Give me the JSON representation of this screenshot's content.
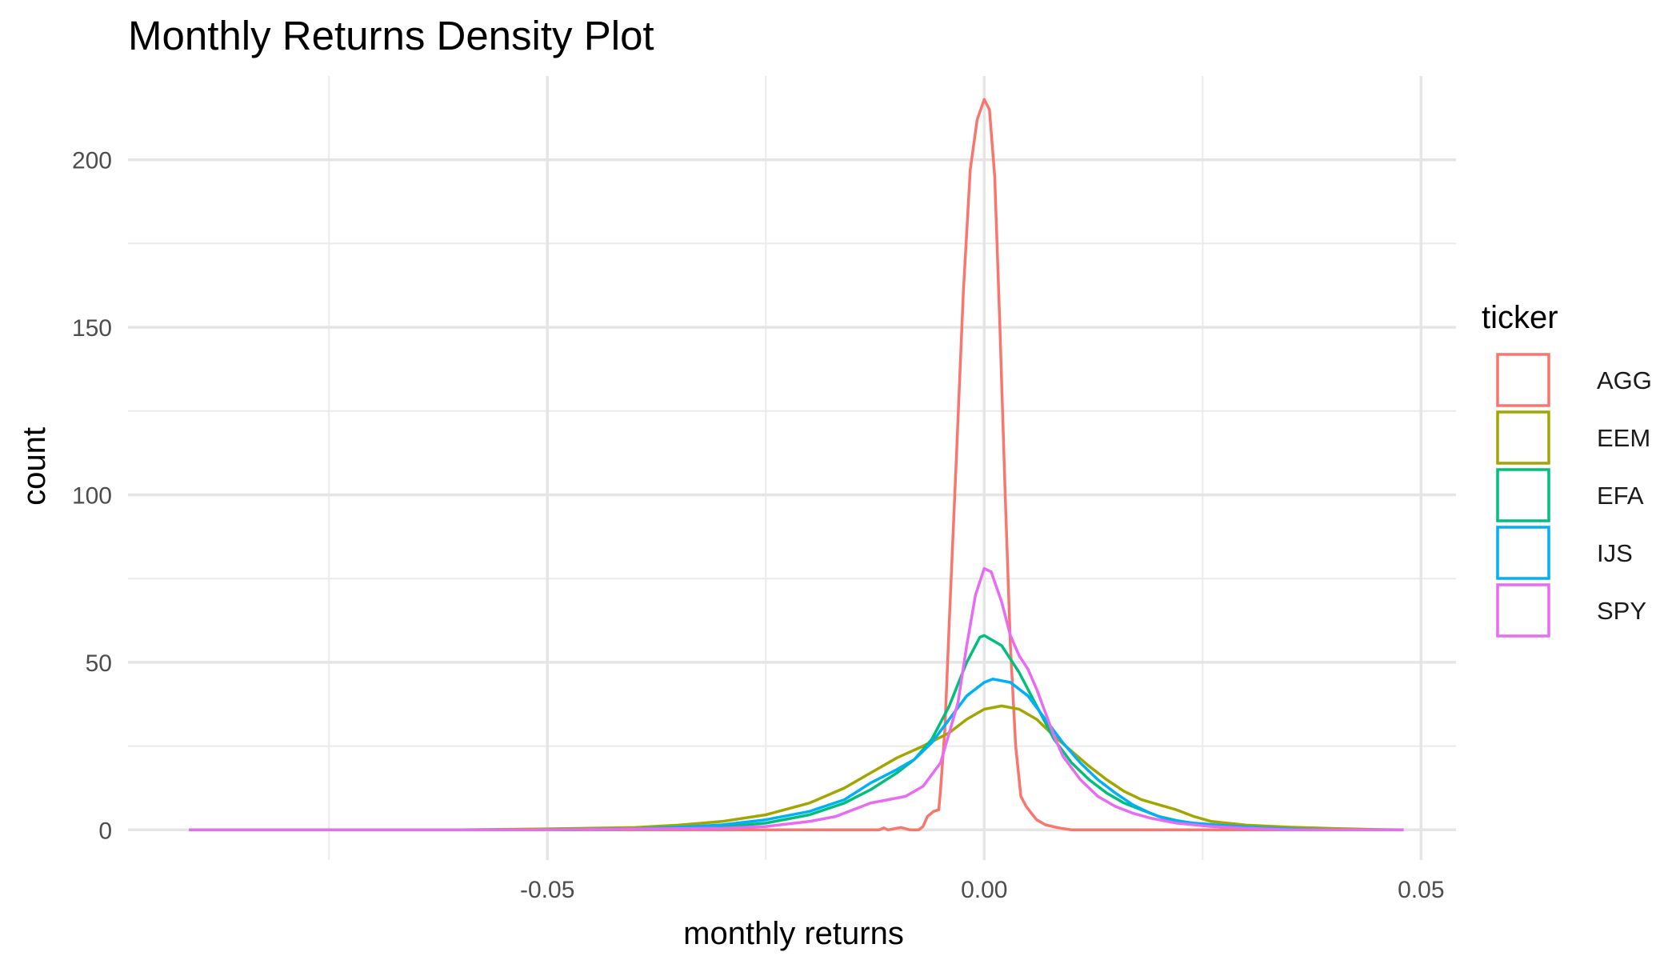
{
  "chart_data": {
    "type": "line",
    "title": "Monthly Returns Density Plot",
    "xlabel": "monthly returns",
    "ylabel": "count",
    "xlim": [
      -0.098,
      0.054
    ],
    "ylim": [
      -9,
      225
    ],
    "x_ticks": [
      -0.05,
      0.0,
      0.05
    ],
    "x_tick_labels": [
      "-0.05",
      "0.00",
      "0.05"
    ],
    "x_minor_ticks": [
      -0.075,
      -0.025,
      0.025
    ],
    "y_ticks": [
      0,
      50,
      100,
      150,
      200
    ],
    "y_tick_labels": [
      "0",
      "50",
      "100",
      "150",
      "200"
    ],
    "y_minor_ticks": [
      25,
      75,
      125,
      175
    ],
    "grid": true,
    "legend": {
      "title": "ticker",
      "position": "right"
    },
    "series": [
      {
        "name": "AGG",
        "color": "#F8766D",
        "points": [
          [
            -0.091,
            0
          ],
          [
            -0.012,
            0
          ],
          [
            -0.0115,
            0.6
          ],
          [
            -0.011,
            0
          ],
          [
            -0.0095,
            0.7
          ],
          [
            -0.0085,
            0
          ],
          [
            -0.0075,
            0
          ],
          [
            -0.007,
            1
          ],
          [
            -0.0065,
            4
          ],
          [
            -0.0058,
            5.5
          ],
          [
            -0.0052,
            6
          ],
          [
            -0.005,
            12
          ],
          [
            -0.0045,
            30
          ],
          [
            -0.004,
            62
          ],
          [
            -0.0032,
            110
          ],
          [
            -0.0024,
            160
          ],
          [
            -0.0016,
            197
          ],
          [
            -0.0008,
            212
          ],
          [
            0.0,
            218
          ],
          [
            0.0006,
            215
          ],
          [
            0.0012,
            195
          ],
          [
            0.0018,
            150
          ],
          [
            0.0024,
            100
          ],
          [
            0.003,
            55
          ],
          [
            0.0036,
            25
          ],
          [
            0.0042,
            10
          ],
          [
            0.0048,
            7
          ],
          [
            0.0054,
            5
          ],
          [
            0.006,
            3
          ],
          [
            0.007,
            1.5
          ],
          [
            0.0085,
            0.6
          ],
          [
            0.01,
            0
          ],
          [
            0.048,
            0
          ]
        ]
      },
      {
        "name": "EEM",
        "color": "#A3A500",
        "points": [
          [
            -0.091,
            0
          ],
          [
            -0.06,
            0
          ],
          [
            -0.05,
            0.3
          ],
          [
            -0.04,
            0.7
          ],
          [
            -0.035,
            1.4
          ],
          [
            -0.03,
            2.5
          ],
          [
            -0.025,
            4.5
          ],
          [
            -0.02,
            8
          ],
          [
            -0.016,
            12.5
          ],
          [
            -0.013,
            17
          ],
          [
            -0.01,
            21.5
          ],
          [
            -0.007,
            25
          ],
          [
            -0.004,
            29
          ],
          [
            -0.002,
            33
          ],
          [
            0.0,
            36
          ],
          [
            0.002,
            37
          ],
          [
            0.004,
            36
          ],
          [
            0.006,
            33
          ],
          [
            0.008,
            28
          ],
          [
            0.01,
            23.5
          ],
          [
            0.012,
            19
          ],
          [
            0.014,
            15
          ],
          [
            0.016,
            11.5
          ],
          [
            0.018,
            9
          ],
          [
            0.02,
            7.5
          ],
          [
            0.022,
            6
          ],
          [
            0.024,
            4
          ],
          [
            0.026,
            2.5
          ],
          [
            0.03,
            1.4
          ],
          [
            0.035,
            0.8
          ],
          [
            0.04,
            0.4
          ],
          [
            0.045,
            0.1
          ],
          [
            0.048,
            0
          ]
        ]
      },
      {
        "name": "EFA",
        "color": "#00BF7D",
        "points": [
          [
            -0.091,
            0
          ],
          [
            -0.05,
            0
          ],
          [
            -0.035,
            0.4
          ],
          [
            -0.03,
            0.9
          ],
          [
            -0.025,
            2
          ],
          [
            -0.02,
            4.5
          ],
          [
            -0.016,
            8
          ],
          [
            -0.013,
            12
          ],
          [
            -0.01,
            17
          ],
          [
            -0.008,
            21
          ],
          [
            -0.006,
            27
          ],
          [
            -0.004,
            37
          ],
          [
            -0.002,
            50
          ],
          [
            -0.0005,
            57.5
          ],
          [
            0.0,
            58
          ],
          [
            0.002,
            55
          ],
          [
            0.004,
            47
          ],
          [
            0.006,
            37
          ],
          [
            0.008,
            27
          ],
          [
            0.01,
            20
          ],
          [
            0.012,
            15
          ],
          [
            0.014,
            11
          ],
          [
            0.016,
            8
          ],
          [
            0.018,
            6
          ],
          [
            0.02,
            4
          ],
          [
            0.022,
            2.8
          ],
          [
            0.025,
            1.5
          ],
          [
            0.03,
            0.7
          ],
          [
            0.035,
            0.2
          ],
          [
            0.04,
            0
          ],
          [
            0.048,
            0
          ]
        ]
      },
      {
        "name": "IJS",
        "color": "#00B0F6",
        "points": [
          [
            -0.091,
            0
          ],
          [
            -0.05,
            0
          ],
          [
            -0.04,
            0.3
          ],
          [
            -0.035,
            0.8
          ],
          [
            -0.03,
            1.5
          ],
          [
            -0.025,
            3
          ],
          [
            -0.02,
            5.5
          ],
          [
            -0.016,
            9
          ],
          [
            -0.013,
            14
          ],
          [
            -0.01,
            18
          ],
          [
            -0.008,
            21
          ],
          [
            -0.006,
            26
          ],
          [
            -0.004,
            33
          ],
          [
            -0.002,
            40
          ],
          [
            0.0,
            44
          ],
          [
            0.001,
            45
          ],
          [
            0.003,
            44
          ],
          [
            0.005,
            40
          ],
          [
            0.007,
            33
          ],
          [
            0.009,
            26
          ],
          [
            0.011,
            20
          ],
          [
            0.013,
            15
          ],
          [
            0.015,
            11
          ],
          [
            0.017,
            7.5
          ],
          [
            0.019,
            5
          ],
          [
            0.021,
            3
          ],
          [
            0.024,
            2
          ],
          [
            0.028,
            1.2
          ],
          [
            0.032,
            0.6
          ],
          [
            0.036,
            0.2
          ],
          [
            0.04,
            0
          ],
          [
            0.048,
            0
          ]
        ]
      },
      {
        "name": "SPY",
        "color": "#E76BF3",
        "points": [
          [
            -0.091,
            0
          ],
          [
            -0.05,
            0
          ],
          [
            -0.03,
            0.5
          ],
          [
            -0.025,
            1
          ],
          [
            -0.02,
            2.5
          ],
          [
            -0.017,
            4
          ],
          [
            -0.015,
            6
          ],
          [
            -0.013,
            8
          ],
          [
            -0.011,
            9
          ],
          [
            -0.009,
            10
          ],
          [
            -0.007,
            13
          ],
          [
            -0.005,
            20
          ],
          [
            -0.003,
            38
          ],
          [
            -0.002,
            55
          ],
          [
            -0.001,
            70
          ],
          [
            0.0,
            78
          ],
          [
            0.0008,
            77
          ],
          [
            0.002,
            68
          ],
          [
            0.003,
            58
          ],
          [
            0.004,
            52
          ],
          [
            0.005,
            48
          ],
          [
            0.006,
            42
          ],
          [
            0.007,
            35
          ],
          [
            0.008,
            28
          ],
          [
            0.009,
            22
          ],
          [
            0.011,
            15
          ],
          [
            0.013,
            10
          ],
          [
            0.015,
            7
          ],
          [
            0.017,
            5
          ],
          [
            0.019,
            3.5
          ],
          [
            0.022,
            2
          ],
          [
            0.026,
            1
          ],
          [
            0.03,
            0.5
          ],
          [
            0.035,
            0
          ],
          [
            0.048,
            0
          ]
        ]
      }
    ]
  }
}
